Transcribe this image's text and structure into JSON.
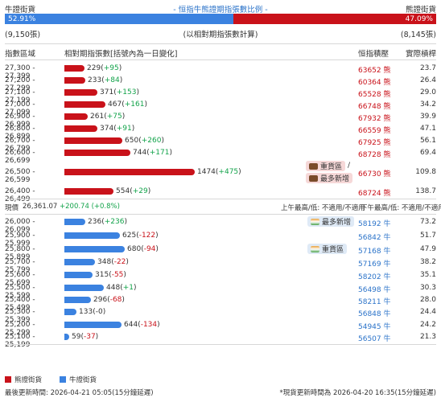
{
  "header": {
    "left": "牛證街貨",
    "center": "- 恒指牛熊證期指張數比例 -",
    "right": "熊證街貨",
    "bull_pct": "52.91%",
    "bear_pct": "47.09%",
    "bull_fraction": 0.5291,
    "bull_count": "(9,150張)",
    "note": "(以相對期指張數計算)",
    "bear_count": "(8,145張)"
  },
  "columns": {
    "range": "指數區域",
    "amount": "相對期指張數[括號內為一日變化]",
    "ref_level": "恒指積壓",
    "ratio": "實際槓桿"
  },
  "colors": {
    "bear": "#c9121a",
    "bull": "#3b82e0",
    "positive": "#12a34a",
    "negative": "#c9121a"
  },
  "bear_rows": [
    {
      "range": "27,300 - 27,399",
      "value": 229,
      "change": "+95",
      "ref": "63652 熊",
      "ratio": "23.7"
    },
    {
      "range": "27,200 - 27,299",
      "value": 233,
      "change": "+84",
      "ref": "60364 熊",
      "ratio": "26.4"
    },
    {
      "range": "27,100 - 27,199",
      "value": 371,
      "change": "+153",
      "ref": "65528 熊",
      "ratio": "29.0"
    },
    {
      "range": "27,000 - 27,099",
      "value": 467,
      "change": "+161",
      "ref": "66748 熊",
      "ratio": "34.2"
    },
    {
      "range": "26,900 - 26,999",
      "value": 261,
      "change": "+75",
      "ref": "67932 熊",
      "ratio": "39.9"
    },
    {
      "range": "26,800 - 26,899",
      "value": 374,
      "change": "+91",
      "ref": "66559 熊",
      "ratio": "47.1"
    },
    {
      "range": "26,700 - 26,799",
      "value": 650,
      "change": "+260",
      "ref": "67925 熊",
      "ratio": "56.1"
    },
    {
      "range": "26,600 - 26,699",
      "value": 744,
      "change": "+171",
      "ref": "68728 熊",
      "ratio": "69.4"
    },
    {
      "range": "26,500 - 26,599",
      "value": 1474,
      "change": "+475",
      "ref": "66730 熊",
      "ratio": "109.8"
    },
    {
      "range": "26,400 - 26,499",
      "value": 554,
      "change": "+29",
      "ref": "68724 熊",
      "ratio": "138.7"
    }
  ],
  "bear_badges": {
    "heavy": "重貨區",
    "slash": "/",
    "most": "最多新增"
  },
  "spot": {
    "label": "現價",
    "value": "26,361.07",
    "change": "+200.74 (+0.8%)",
    "am": "上午最高/低: 不適用/不適用",
    "pm": "下午最高/低: 不適用/不適用"
  },
  "bull_rows": [
    {
      "range": "26,000 - 26,099",
      "value": 236,
      "change": "+236",
      "ref": "58192 牛",
      "ratio": "73.2"
    },
    {
      "range": "25,900 - 25,999",
      "value": 625,
      "change": "-122",
      "ref": "56842 牛",
      "ratio": "51.7"
    },
    {
      "range": "25,800 - 25,899",
      "value": 680,
      "change": "-94",
      "ref": "57168 牛",
      "ratio": "47.9"
    },
    {
      "range": "25,700 - 25,799",
      "value": 348,
      "change": "-22",
      "ref": "57169 牛",
      "ratio": "38.2"
    },
    {
      "range": "25,600 - 25,699",
      "value": 315,
      "change": "-55",
      "ref": "58202 牛",
      "ratio": "35.1"
    },
    {
      "range": "25,500 - 25,599",
      "value": 448,
      "change": "+1",
      "ref": "56498 牛",
      "ratio": "30.3"
    },
    {
      "range": "25,400 - 25,499",
      "value": 296,
      "change": "-68",
      "ref": "58211 牛",
      "ratio": "28.0"
    },
    {
      "range": "25,300 - 25,399",
      "value": 133,
      "change": "-0",
      "ref": "56848 牛",
      "ratio": "24.4"
    },
    {
      "range": "25,200 - 25,299",
      "value": 644,
      "change": "-134",
      "ref": "54945 牛",
      "ratio": "24.2"
    },
    {
      "range": "25,100 - 25,199",
      "value": 59,
      "change": "-37",
      "ref": "56507 牛",
      "ratio": "21.3"
    }
  ],
  "bull_badges": {
    "most": "最多新增",
    "heavy": "重貨區"
  },
  "legend": {
    "bear": "熊證街貨",
    "bull": "牛證街貨"
  },
  "footer": {
    "left": "最後更新時間: 2026-04-21 05:05(15分鐘延遲)",
    "right": "*現貨更新時間為 2026-04-20 16:35(15分鐘延遲)"
  }
}
